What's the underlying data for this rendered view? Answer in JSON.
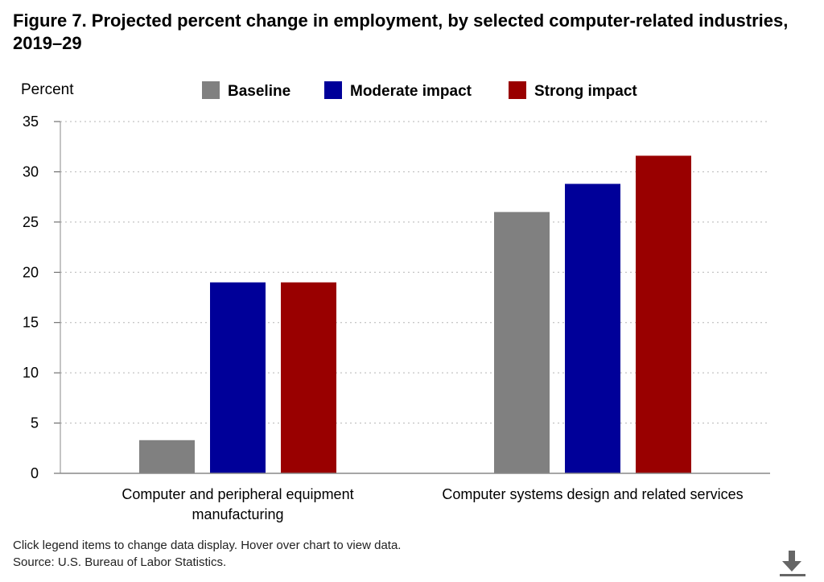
{
  "chart_data": {
    "type": "bar",
    "title": "Figure 7. Projected percent change in employment, by selected computer-related industries, 2019–29",
    "ylabel": "Percent",
    "ylim": [
      0,
      35
    ],
    "yticks": [
      0,
      5,
      10,
      15,
      20,
      25,
      30,
      35
    ],
    "grid": true,
    "legend_position": "top",
    "categories": [
      [
        "Computer and peripheral equipment",
        "manufacturing"
      ],
      [
        "Computer systems design and related services"
      ]
    ],
    "series": [
      {
        "name": "Baseline",
        "color": "#808080",
        "values": [
          3.3,
          26.0
        ]
      },
      {
        "name": "Moderate impact",
        "color": "#000099",
        "values": [
          19.0,
          28.8
        ]
      },
      {
        "name": "Strong impact",
        "color": "#990000",
        "values": [
          19.0,
          31.6
        ]
      }
    ]
  },
  "footer": {
    "instructions": "Click legend items to change data display. Hover over chart to view data.",
    "source": "Source: U.S. Bureau of Labor Statistics."
  },
  "icons": {
    "download": "download-icon"
  }
}
